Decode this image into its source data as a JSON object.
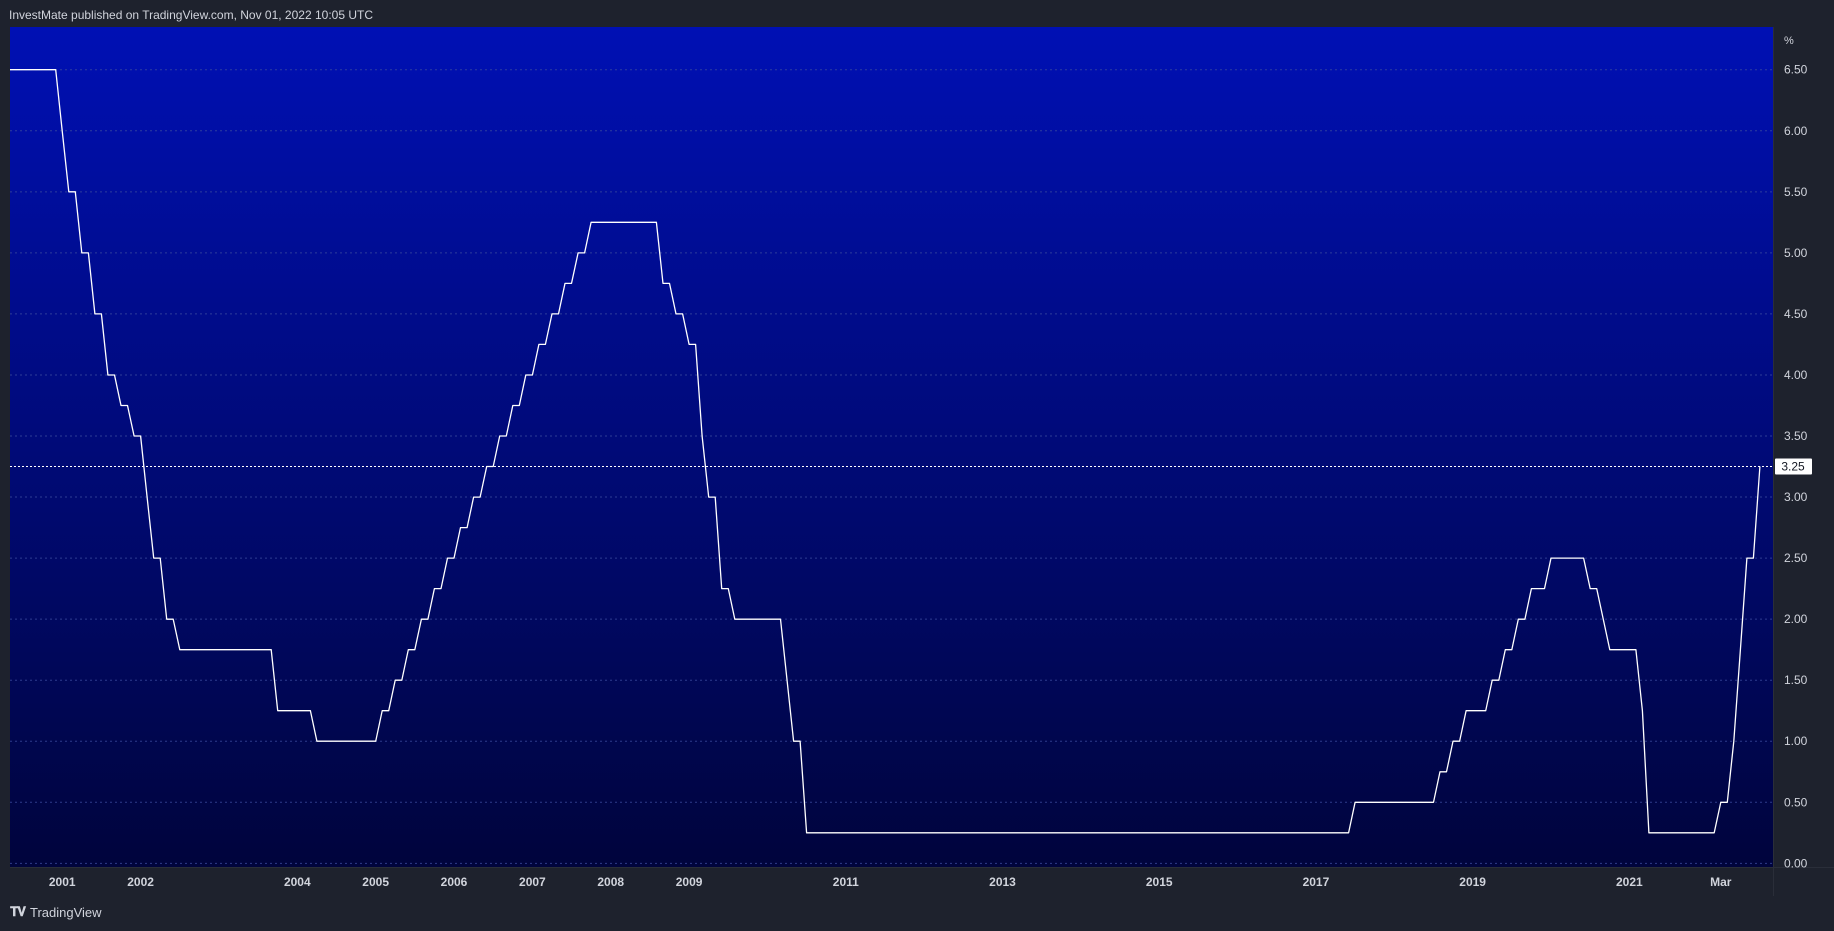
{
  "header": {
    "attribution": "InvestMate published on TradingView.com, Nov 01, 2022 10:05 UTC"
  },
  "footer": {
    "logo_icon": "tradingview-logo-icon",
    "brand": "TradingView"
  },
  "colors": {
    "page_background": "#1e222d",
    "plot_gradient_top": "#0010b4",
    "plot_gradient_bottom": "#00043c",
    "line": "#ffffff",
    "axis_text": "#d1d4dc",
    "grid": "#3a4a9c"
  },
  "chart_data": {
    "type": "line",
    "unit": "%",
    "grid": true,
    "ylim": [
      -0.03,
      6.85
    ],
    "y_ticks": [
      0.0,
      0.5,
      1.0,
      1.5,
      2.0,
      2.5,
      3.0,
      3.5,
      4.0,
      4.5,
      5.0,
      5.5,
      6.0,
      6.5
    ],
    "x_range": [
      "2000-05",
      "2022-11"
    ],
    "x_ticks": [
      {
        "label": "2001",
        "date": "2001-01"
      },
      {
        "label": "2002",
        "date": "2002-01"
      },
      {
        "label": "2004",
        "date": "2004-01"
      },
      {
        "label": "2005",
        "date": "2005-01"
      },
      {
        "label": "2006",
        "date": "2006-01"
      },
      {
        "label": "2007",
        "date": "2007-01"
      },
      {
        "label": "2008",
        "date": "2008-01"
      },
      {
        "label": "2009",
        "date": "2009-01"
      },
      {
        "label": "2011",
        "date": "2011-01"
      },
      {
        "label": "2013",
        "date": "2013-01"
      },
      {
        "label": "2015",
        "date": "2015-01"
      },
      {
        "label": "2017",
        "date": "2017-01"
      },
      {
        "label": "2019",
        "date": "2019-01"
      },
      {
        "label": "2021",
        "date": "2021-01"
      },
      {
        "label": "Mar",
        "date": "2022-03"
      }
    ],
    "last_value": "3.25",
    "series": [
      {
        "points": [
          [
            "2000-05",
            6.5
          ],
          [
            "2000-12",
            6.5
          ],
          [
            "2001-01",
            6.0
          ],
          [
            "2001-02",
            5.5
          ],
          [
            "2001-03",
            5.5
          ],
          [
            "2001-04",
            5.0
          ],
          [
            "2001-05",
            5.0
          ],
          [
            "2001-06",
            4.5
          ],
          [
            "2001-07",
            4.5
          ],
          [
            "2001-08",
            4.0
          ],
          [
            "2001-09",
            4.0
          ],
          [
            "2001-10",
            3.75
          ],
          [
            "2001-11",
            3.75
          ],
          [
            "2001-12",
            3.5
          ],
          [
            "2002-01",
            3.5
          ],
          [
            "2002-02",
            3.0
          ],
          [
            "2002-03",
            2.5
          ],
          [
            "2002-04",
            2.5
          ],
          [
            "2002-05",
            2.0
          ],
          [
            "2002-06",
            2.0
          ],
          [
            "2002-07",
            1.75
          ],
          [
            "2003-09",
            1.75
          ],
          [
            "2003-10",
            1.25
          ],
          [
            "2004-03",
            1.25
          ],
          [
            "2004-04",
            1.0
          ],
          [
            "2005-01",
            1.0
          ],
          [
            "2005-02",
            1.25
          ],
          [
            "2005-03",
            1.25
          ],
          [
            "2005-04",
            1.5
          ],
          [
            "2005-05",
            1.5
          ],
          [
            "2005-06",
            1.75
          ],
          [
            "2005-07",
            1.75
          ],
          [
            "2005-08",
            2.0
          ],
          [
            "2005-09",
            2.0
          ],
          [
            "2005-10",
            2.25
          ],
          [
            "2005-11",
            2.25
          ],
          [
            "2005-12",
            2.5
          ],
          [
            "2006-01",
            2.5
          ],
          [
            "2006-02",
            2.75
          ],
          [
            "2006-03",
            2.75
          ],
          [
            "2006-04",
            3.0
          ],
          [
            "2006-05",
            3.0
          ],
          [
            "2006-06",
            3.25
          ],
          [
            "2006-07",
            3.25
          ],
          [
            "2006-08",
            3.5
          ],
          [
            "2006-09",
            3.5
          ],
          [
            "2006-10",
            3.75
          ],
          [
            "2006-11",
            3.75
          ],
          [
            "2006-12",
            4.0
          ],
          [
            "2007-01",
            4.0
          ],
          [
            "2007-02",
            4.25
          ],
          [
            "2007-03",
            4.25
          ],
          [
            "2007-04",
            4.5
          ],
          [
            "2007-05",
            4.5
          ],
          [
            "2007-06",
            4.75
          ],
          [
            "2007-07",
            4.75
          ],
          [
            "2007-08",
            5.0
          ],
          [
            "2007-09",
            5.0
          ],
          [
            "2007-10",
            5.25
          ],
          [
            "2008-08",
            5.25
          ],
          [
            "2008-09",
            4.75
          ],
          [
            "2008-10",
            4.75
          ],
          [
            "2008-11",
            4.5
          ],
          [
            "2008-12",
            4.5
          ],
          [
            "2009-01",
            4.25
          ],
          [
            "2009-02",
            4.25
          ],
          [
            "2009-03",
            3.5
          ],
          [
            "2009-04",
            3.0
          ],
          [
            "2009-05",
            3.0
          ],
          [
            "2009-06",
            2.25
          ],
          [
            "2009-07",
            2.25
          ],
          [
            "2009-08",
            2.0
          ],
          [
            "2010-03",
            2.0
          ],
          [
            "2010-05",
            1.0
          ],
          [
            "2010-06",
            1.0
          ],
          [
            "2010-07",
            0.25
          ],
          [
            "2017-06",
            0.25
          ],
          [
            "2017-07",
            0.5
          ],
          [
            "2018-07",
            0.5
          ],
          [
            "2018-08",
            0.75
          ],
          [
            "2018-09",
            0.75
          ],
          [
            "2018-10",
            1.0
          ],
          [
            "2018-11",
            1.0
          ],
          [
            "2018-12",
            1.25
          ],
          [
            "2019-03",
            1.25
          ],
          [
            "2019-04",
            1.5
          ],
          [
            "2019-05",
            1.5
          ],
          [
            "2019-06",
            1.75
          ],
          [
            "2019-07",
            1.75
          ],
          [
            "2019-08",
            2.0
          ],
          [
            "2019-09",
            2.0
          ],
          [
            "2019-10",
            2.25
          ],
          [
            "2019-12",
            2.25
          ],
          [
            "2020-01",
            2.5
          ],
          [
            "2020-06",
            2.5
          ],
          [
            "2020-07",
            2.25
          ],
          [
            "2020-08",
            2.25
          ],
          [
            "2020-10",
            1.75
          ],
          [
            "2021-02",
            1.75
          ],
          [
            "2021-03",
            1.25
          ],
          [
            "2021-04",
            0.25
          ],
          [
            "2022-02",
            0.25
          ],
          [
            "2022-03",
            0.5
          ],
          [
            "2022-04",
            0.5
          ],
          [
            "2022-05",
            1.0
          ],
          [
            "2022-06",
            1.75
          ],
          [
            "2022-07",
            2.5
          ],
          [
            "2022-08",
            2.5
          ],
          [
            "2022-09",
            3.25
          ]
        ]
      }
    ]
  }
}
